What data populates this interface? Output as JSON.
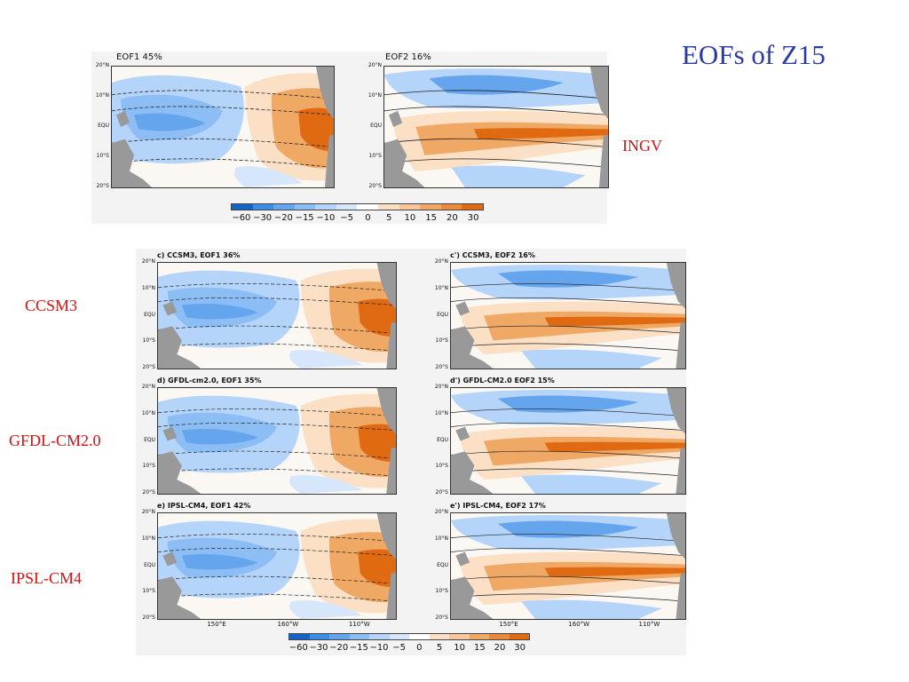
{
  "title": "EOFs of Z15",
  "colors": {
    "title": "#2b3ba6",
    "labels": "#d81010",
    "land": "#999999"
  },
  "labels": {
    "ingv": "INGV",
    "ccsm3": "CCSM3",
    "gfdl": "GFDL-CM2.0",
    "ipsl": "IPSL-CM4"
  },
  "lat_ticks": [
    "20°N",
    "10°N",
    "EQU",
    "10°S",
    "20°S"
  ],
  "lon_ticks": [
    "150°E",
    "160°W",
    "110°W"
  ],
  "colorbar": {
    "ticks": [
      "−60",
      "−30",
      "−20",
      "−15",
      "−10",
      "−5",
      "0",
      "5",
      "10",
      "15",
      "20",
      "30"
    ],
    "colors": [
      "#1464c8",
      "#3c8ce6",
      "#64a5ee",
      "#8cbef5",
      "#b4d4fa",
      "#d6e7fc",
      "#ffffff",
      "#fbe0c6",
      "#f6c79a",
      "#f0a865",
      "#ea8a3a",
      "#e06a12"
    ]
  },
  "maps": {
    "ingv_eof1": {
      "title": "EOF1  45%",
      "pattern": "eof1"
    },
    "ingv_eof2": {
      "title": "EOF2  16%",
      "pattern": "eof2"
    },
    "ccsm3_eof1": {
      "title": "c) CCSM3, EOF1  36%",
      "pattern": "eof1"
    },
    "ccsm3_eof2": {
      "title": "c') CCSM3, EOF2  16%",
      "pattern": "eof2"
    },
    "gfdl_eof1": {
      "title": "d) GFDL-cm2.0, EOF1  35%",
      "pattern": "eof1"
    },
    "gfdl_eof2": {
      "title": "d') GFDL-CM2.0 EOF2  15%",
      "pattern": "eof2"
    },
    "ipsl_eof1": {
      "title": "e) IPSL-CM4, EOF1  42%",
      "pattern": "eof1"
    },
    "ipsl_eof2": {
      "title": "e') IPSL-CM4, EOF2  17%",
      "pattern": "eof2"
    }
  }
}
